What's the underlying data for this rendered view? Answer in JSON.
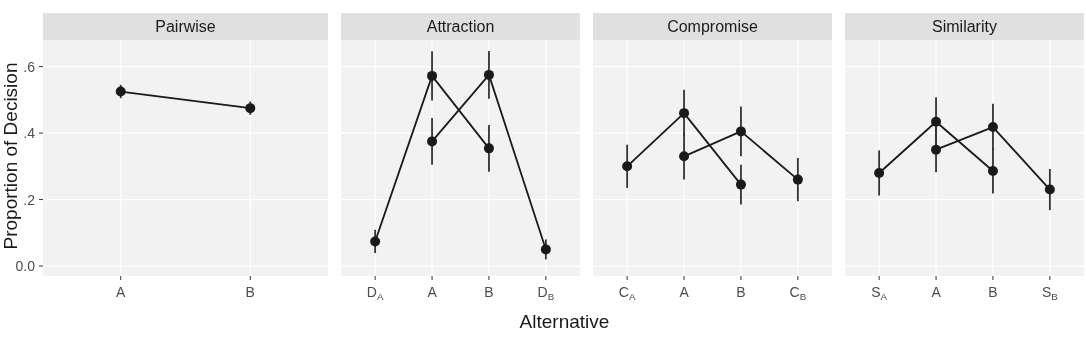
{
  "chart_data": [
    {
      "type": "line",
      "title": "Pairwise",
      "ylabel": "Proportion of Decision",
      "categories": [
        "A",
        "B"
      ],
      "series": [
        {
          "color": "#1a1a1a",
          "values": [
            0.525,
            0.475
          ],
          "errors": [
            0.02,
            0.02
          ]
        }
      ],
      "ylim": [
        -0.03,
        0.68
      ],
      "yticks": [
        {
          "value": 0,
          "label": "0.0"
        },
        {
          "value": 0.2,
          "label": ".2"
        },
        {
          "value": 0.4,
          "label": ".4"
        },
        {
          "value": 0.6,
          "label": ".6"
        }
      ],
      "grid": true,
      "marker": "circle",
      "line_style": "solid"
    },
    {
      "type": "line",
      "title": "Attraction",
      "xlabel": "Alternative",
      "categories": [
        "D$_{A}$",
        "A",
        "B",
        "D$_{B}$"
      ],
      "series": [
        {
          "color": "#1a1a1a",
          "values": [
            0.074,
            0.572,
            0.354,
            null
          ],
          "errors": [
            0.035,
            0.074,
            0.07,
            null
          ]
        },
        {
          "color": "#1a1a1a",
          "values": [
            null,
            0.375,
            0.575,
            0.05
          ],
          "errors": [
            null,
            0.07,
            0.072,
            0.03
          ]
        }
      ],
      "ylim": [
        -0.03,
        0.68
      ],
      "yticks": [
        0,
        0.2,
        0.4,
        0.6
      ],
      "tick_labels": "x",
      "grid": true,
      "marker": "circle",
      "line_style": "solid"
    },
    {
      "type": "line",
      "title": "Compromise",
      "categories": [
        "C$_{A}$",
        "A",
        "B",
        "C$_{B}$"
      ],
      "series": [
        {
          "color": "#1a1a1a",
          "values": [
            0.3,
            0.46,
            0.245,
            null
          ],
          "errors": [
            0.065,
            0.07,
            0.06,
            null
          ]
        },
        {
          "color": "#1a1a1a",
          "values": [
            null,
            0.33,
            0.405,
            0.26
          ],
          "errors": [
            null,
            0.07,
            0.075,
            0.065
          ]
        }
      ],
      "ylim": [
        -0.03,
        0.68
      ],
      "yticks": [
        0,
        0.2,
        0.4,
        0.6
      ],
      "tick_labels": "x",
      "grid": true,
      "marker": "circle",
      "line_style": "solid"
    },
    {
      "type": "line",
      "title": "Similarity",
      "categories": [
        "S$_{A}$",
        "A",
        "B",
        "S$_{B}$"
      ],
      "series": [
        {
          "color": "#1a1a1a",
          "values": [
            0.28,
            0.434,
            0.286,
            null
          ],
          "errors": [
            0.068,
            0.074,
            0.068,
            null
          ]
        },
        {
          "color": "#1a1a1a",
          "values": [
            null,
            0.35,
            0.418,
            0.23
          ],
          "errors": [
            null,
            0.068,
            0.07,
            0.062
          ]
        }
      ],
      "ylim": [
        -0.03,
        0.68
      ],
      "yticks": [
        0,
        0.2,
        0.4,
        0.6
      ],
      "tick_labels": "x",
      "grid": true,
      "marker": "circle",
      "line_style": "solid"
    }
  ]
}
